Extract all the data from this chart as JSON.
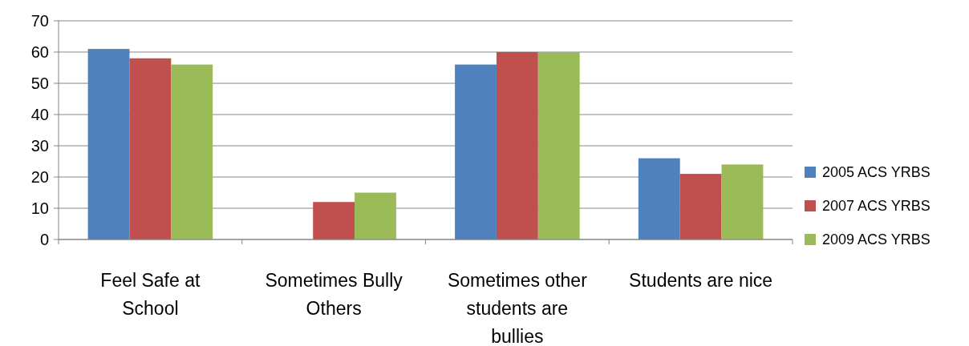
{
  "chart_data": {
    "type": "bar",
    "categories": [
      "Feel Safe at School",
      "Sometimes Bully Others",
      "Sometimes other students are bullies",
      "Students are nice"
    ],
    "series": [
      {
        "name": "2005 ACS YRBS",
        "color": "#4f81bd",
        "values": [
          61,
          null,
          56,
          26
        ]
      },
      {
        "name": "2007 ACS YRBS",
        "color": "#c0504d",
        "values": [
          58,
          12,
          60,
          21
        ]
      },
      {
        "name": "2009 ACS YRBS",
        "color": "#9bbb59",
        "values": [
          56,
          15,
          60,
          24
        ]
      }
    ],
    "ylim": [
      0,
      70
    ],
    "yticks": [
      0,
      10,
      20,
      30,
      40,
      50,
      60,
      70
    ],
    "grid": "y",
    "legend": "right"
  }
}
